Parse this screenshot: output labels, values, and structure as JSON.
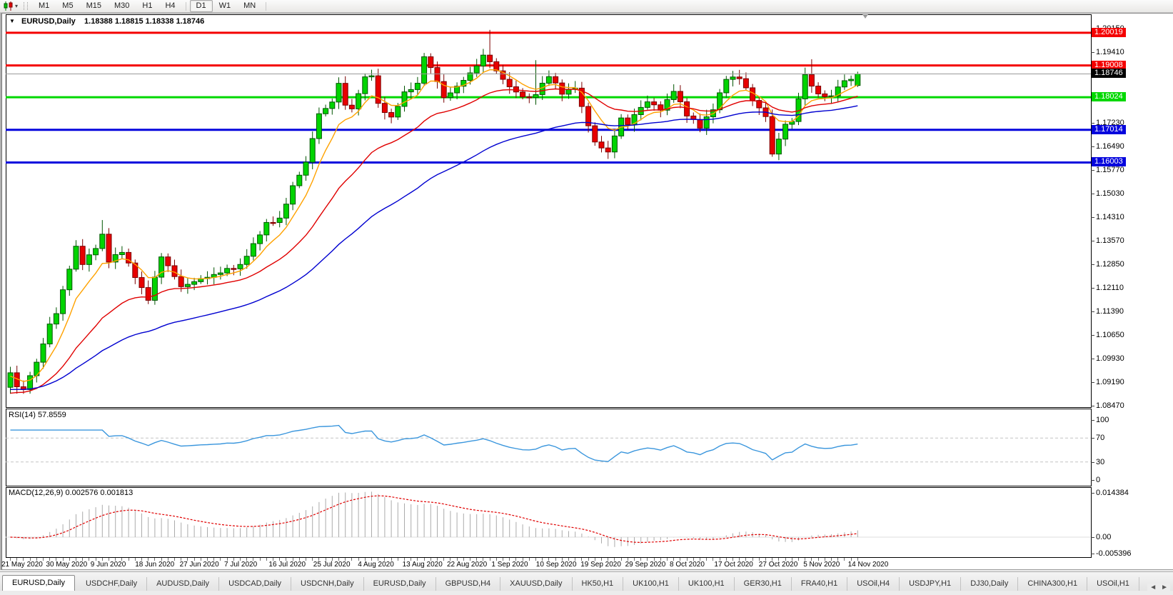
{
  "toolbar": {
    "chart_type_icon": "candlestick-chart-icon",
    "dropdown_caret": "▾",
    "timeframes": [
      "M1",
      "M5",
      "M15",
      "M30",
      "H1",
      "H4",
      "D1",
      "W1",
      "MN"
    ],
    "active_timeframe": "D1"
  },
  "chart_header": {
    "collapse_icon": "▼",
    "symbol_period": "EURUSD,Daily",
    "ohlc": "1.18388 1.18815 1.18338 1.18746"
  },
  "price_axis": {
    "tick_labels": [
      "1.20150",
      "1.19410",
      "1.17230",
      "1.16490",
      "1.15770",
      "1.15030",
      "1.14310",
      "1.13570",
      "1.12850",
      "1.12110",
      "1.11390",
      "1.10650",
      "1.09930",
      "1.09190",
      "1.08470"
    ]
  },
  "price_lines": [
    {
      "label": "1.20019",
      "value": 1.20019,
      "color": "#F40000",
      "type": "resistance"
    },
    {
      "label": "1.19008",
      "value": 1.19008,
      "color": "#F40000",
      "type": "resistance"
    },
    {
      "label": "1.18024",
      "value": 1.18024,
      "color": "#00D800",
      "type": "pivot"
    },
    {
      "label": "1.17014",
      "value": 1.17014,
      "color": "#0505DD",
      "type": "support"
    },
    {
      "label": "1.16003",
      "value": 1.16003,
      "color": "#0505DD",
      "type": "support"
    }
  ],
  "bid_line": {
    "label": "1.18746",
    "value": 1.18746,
    "tag_color": "#000000",
    "line_color": "#9a9a9a"
  },
  "date_axis": [
    "21 May 2020",
    "30 May 2020",
    "9 Jun 2020",
    "18 Jun 2020",
    "27 Jun 2020",
    "7 Jul 2020",
    "16 Jul 2020",
    "25 Jul 2020",
    "4 Aug 2020",
    "13 Aug 2020",
    "22 Aug 2020",
    "1 Sep 2020",
    "10 Sep 2020",
    "19 Sep 2020",
    "29 Sep 2020",
    "8 Oct 2020",
    "17 Oct 2020",
    "27 Oct 2020",
    "5 Nov 2020",
    "14 Nov 2020"
  ],
  "rsi_panel": {
    "label": "RSI(14) 57.8559",
    "current_value": 57.8559,
    "axis_labels": [
      "100",
      "70",
      "30",
      "0"
    ],
    "level_lines": [
      70,
      30
    ],
    "line_color": "#3A96DD"
  },
  "macd_panel": {
    "label": "MACD(12,26,9) 0.002576 0.001813",
    "main_value": 0.002576,
    "signal_value": 0.001813,
    "axis_labels": [
      "0.014384",
      "0.00",
      "-0.005396"
    ],
    "histogram_color": "#ABABAB",
    "signal_color": "#E00000"
  },
  "tab_bar": {
    "tabs": [
      "EURUSD,Daily",
      "USDCHF,Daily",
      "AUDUSD,Daily",
      "USDCAD,Daily",
      "USDCNH,Daily",
      "EURUSD,Daily",
      "GBPUSD,H4",
      "XAUUSD,Daily",
      "HK50,H1",
      "UK100,H1",
      "UK100,H1",
      "GER30,H1",
      "FRA40,H1",
      "USOil,H4",
      "USDJPY,H1",
      "DJ30,Daily",
      "CHINA300,H1",
      "USOil,H1"
    ],
    "active_index": 0,
    "scroll_left_icon": "◄",
    "scroll_right_icon": "►"
  },
  "chart_data": {
    "type": "candlestick",
    "symbol": "EURUSD",
    "period": "Daily",
    "bars": 130,
    "visible_range": {
      "price_top": 1.2015,
      "price_bottom": 1.0847,
      "date_start": "21 May 2020",
      "date_end": "18 Nov 2020"
    },
    "up_color": "#00D400",
    "up_border": "#005500",
    "down_color": "#E80000",
    "down_border": "#7A0000",
    "close_waypoints": [
      [
        0,
        1.0949
      ],
      [
        1,
        1.0901
      ],
      [
        2,
        1.0895
      ],
      [
        4,
        1.0984
      ],
      [
        6,
        1.1101
      ],
      [
        7,
        1.1133
      ],
      [
        10,
        1.1337
      ],
      [
        11,
        1.1289
      ],
      [
        13,
        1.134
      ],
      [
        14,
        1.1375
      ],
      [
        15,
        1.1293
      ],
      [
        17,
        1.1323
      ],
      [
        21,
        1.1177
      ],
      [
        23,
        1.1306
      ],
      [
        26,
        1.1218
      ],
      [
        28,
        1.1234
      ],
      [
        31,
        1.1248
      ],
      [
        33,
        1.1271
      ],
      [
        35,
        1.1284
      ],
      [
        37,
        1.1343
      ],
      [
        39,
        1.1409
      ],
      [
        41,
        1.1428
      ],
      [
        43,
        1.1527
      ],
      [
        45,
        1.1596
      ],
      [
        47,
        1.175
      ],
      [
        49,
        1.1791
      ],
      [
        50,
        1.1847
      ],
      [
        51,
        1.1778
      ],
      [
        52,
        1.1762
      ],
      [
        54,
        1.1862
      ],
      [
        55,
        1.1873
      ],
      [
        56,
        1.1784
      ],
      [
        58,
        1.1738
      ],
      [
        60,
        1.1812
      ],
      [
        62,
        1.1843
      ],
      [
        63,
        1.1934
      ],
      [
        65,
        1.1855
      ],
      [
        66,
        1.1797
      ],
      [
        68,
        1.1832
      ],
      [
        71,
        1.1903
      ],
      [
        72,
        1.1935
      ],
      [
        73,
        1.1911
      ],
      [
        75,
        1.1853
      ],
      [
        77,
        1.1818
      ],
      [
        79,
        1.1801
      ],
      [
        80,
        1.1814
      ],
      [
        82,
        1.1866
      ],
      [
        84,
        1.1816
      ],
      [
        86,
        1.1837
      ],
      [
        87,
        1.1772
      ],
      [
        89,
        1.1658
      ],
      [
        91,
        1.1631
      ],
      [
        93,
        1.1741
      ],
      [
        94,
        1.172
      ],
      [
        95,
        1.1748
      ],
      [
        97,
        1.1786
      ],
      [
        99,
        1.1766
      ],
      [
        101,
        1.1826
      ],
      [
        103,
        1.1745
      ],
      [
        105,
        1.1708
      ],
      [
        107,
        1.177
      ],
      [
        109,
        1.1862
      ],
      [
        111,
        1.1859
      ],
      [
        113,
        1.1794
      ],
      [
        115,
        1.1747
      ],
      [
        116,
        1.1628
      ],
      [
        118,
        1.1716
      ],
      [
        119,
        1.1723
      ],
      [
        121,
        1.1872
      ],
      [
        123,
        1.1813
      ],
      [
        125,
        1.1801
      ],
      [
        126,
        1.1834
      ],
      [
        128,
        1.1862
      ],
      [
        129,
        1.18746
      ]
    ],
    "high_overrides": [
      [
        14,
        1.1422
      ],
      [
        73,
        1.2011
      ],
      [
        80,
        1.1917
      ],
      [
        122,
        1.192
      ]
    ],
    "last_bar": {
      "open": 1.18388,
      "high": 1.18815,
      "low": 1.18338,
      "close": 1.18746
    },
    "moving_averages": [
      {
        "name": "ma-fast",
        "color": "#FFA200",
        "period": 7,
        "seed": 1.0935
      },
      {
        "name": "ma-medium",
        "color": "#E00000",
        "period": 22,
        "seed": 1.088
      },
      {
        "name": "ma-slow",
        "color": "#0000D0",
        "period": 50,
        "seed": 1.0895
      }
    ],
    "indicators": [
      {
        "name": "RSI",
        "params": "14",
        "current": 57.8559,
        "scale": [
          0,
          100
        ],
        "levels": [
          30,
          70
        ]
      },
      {
        "name": "MACD",
        "params": "12,26,9",
        "values": [
          0.002576,
          0.001813
        ],
        "scale": [
          -0.005396,
          0.014384
        ]
      }
    ]
  }
}
